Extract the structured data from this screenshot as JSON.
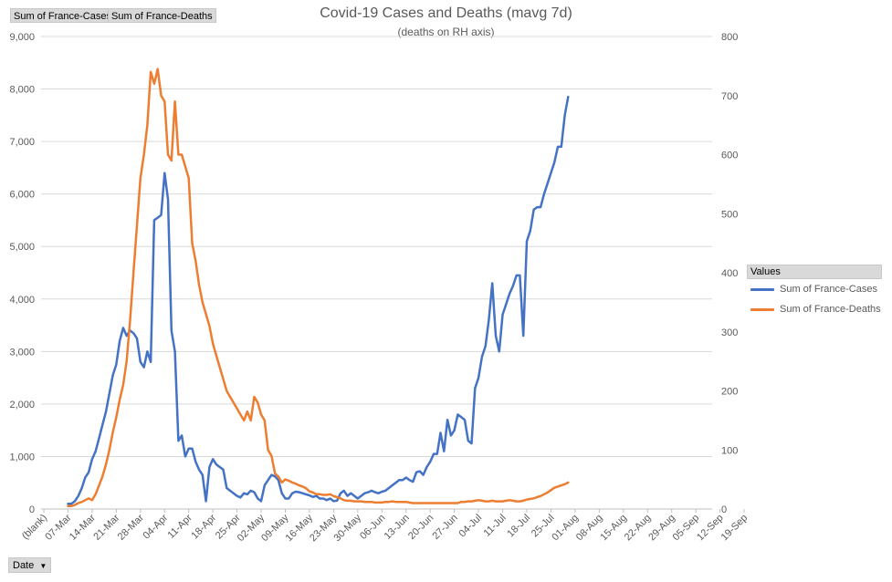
{
  "field_buttons": [
    "Sum of France-Cases",
    "Sum of France-Deaths"
  ],
  "axis_field_button": {
    "label": "Date",
    "icon": "dropdown-arrow-icon"
  },
  "chart_data": {
    "type": "line",
    "title": "Covid-19 Cases and Deaths (mavg 7d)",
    "subtitle": "(deaths on RH axis)",
    "x_tick_labels": [
      "(blank)",
      "07-Mar",
      "14-Mar",
      "21-Mar",
      "28-Mar",
      "04-Apr",
      "11-Apr",
      "18-Apr",
      "25-Apr",
      "02-May",
      "09-May",
      "16-May",
      "23-May",
      "30-May",
      "06-Jun",
      "13-Jun",
      "20-Jun",
      "27-Jun",
      "04-Jul",
      "11-Jul",
      "18-Jul",
      "25-Jul",
      "01-Aug",
      "08-Aug",
      "15-Aug",
      "22-Aug",
      "29-Aug",
      "05-Sep",
      "12-Sep",
      "19-Sep"
    ],
    "y_left": {
      "min": 0,
      "max": 9000,
      "ticks": [
        "0",
        "1,000",
        "2,000",
        "3,000",
        "4,000",
        "5,000",
        "6,000",
        "7,000",
        "8,000",
        "9,000"
      ]
    },
    "y_right": {
      "min": 0,
      "max": 800,
      "ticks": [
        "0",
        "100",
        "200",
        "300",
        "400",
        "500",
        "600",
        "700",
        "800"
      ]
    },
    "grid": true,
    "legend": {
      "title": "Values",
      "placement": "right"
    },
    "series": [
      {
        "name": "Sum of France-Cases",
        "axis": "left",
        "color": "#4472c4",
        "start_index": 1,
        "values": [
          100,
          100,
          150,
          250,
          400,
          600,
          700,
          950,
          1100,
          1350,
          1600,
          1850,
          2200,
          2550,
          2750,
          3200,
          3450,
          3300,
          3400,
          3350,
          3250,
          2800,
          2700,
          3000,
          2800,
          5500,
          5550,
          5600,
          6400,
          5900,
          3400,
          3000,
          1300,
          1400,
          1000,
          1150,
          1150,
          900,
          750,
          650,
          150,
          800,
          950,
          850,
          800,
          750,
          400,
          350,
          300,
          250,
          220,
          300,
          280,
          350,
          320,
          200,
          150,
          450,
          550,
          650,
          620,
          550,
          300,
          200,
          200,
          300,
          330,
          320,
          300,
          280,
          260,
          230,
          250,
          200,
          200,
          170,
          200,
          150,
          160,
          300,
          350,
          250,
          300,
          250,
          200,
          250,
          300,
          320,
          350,
          320,
          300,
          330,
          350,
          400,
          450,
          500,
          550,
          550,
          600,
          550,
          520,
          700,
          720,
          650,
          800,
          900,
          1050,
          1050,
          1450,
          1100,
          1700,
          1400,
          1500,
          1800,
          1750,
          1700,
          1300,
          1250,
          2300,
          2500,
          2900,
          3100,
          3600,
          4300,
          3300,
          3000,
          3700,
          3900,
          4100,
          4250,
          4450,
          4450,
          3300,
          5100,
          5300,
          5700,
          5750,
          5750,
          6000,
          6200,
          6400,
          6600,
          6900,
          6900,
          7500,
          7850
        ]
      },
      {
        "name": "Sum of France-Deaths",
        "axis": "right",
        "color": "#ed7d31",
        "start_index": 1,
        "values": [
          5,
          5,
          7,
          10,
          12,
          15,
          18,
          15,
          25,
          40,
          55,
          75,
          100,
          130,
          155,
          185,
          210,
          250,
          320,
          400,
          480,
          560,
          600,
          650,
          740,
          720,
          745,
          700,
          690,
          600,
          590,
          690,
          600,
          600,
          580,
          560,
          450,
          420,
          380,
          350,
          330,
          310,
          280,
          260,
          240,
          220,
          200,
          190,
          180,
          170,
          160,
          150,
          165,
          150,
          190,
          180,
          160,
          150,
          100,
          90,
          60,
          55,
          45,
          50,
          48,
          45,
          43,
          40,
          38,
          35,
          30,
          28,
          25,
          25,
          24,
          24,
          25,
          22,
          20,
          18,
          15,
          14,
          14,
          13,
          13,
          13,
          12,
          12,
          12,
          11,
          11,
          11,
          12,
          12,
          13,
          12,
          12,
          12,
          12,
          11,
          10,
          10,
          10,
          10,
          10,
          10,
          10,
          10,
          10,
          10,
          10,
          10,
          10,
          10,
          12,
          12,
          13,
          13,
          14,
          15,
          14,
          13,
          13,
          14,
          13,
          13,
          13,
          14,
          15,
          14,
          13,
          13,
          14,
          16,
          17,
          18,
          20,
          22,
          25,
          28,
          32,
          36,
          38,
          40,
          42,
          45
        ]
      }
    ]
  }
}
